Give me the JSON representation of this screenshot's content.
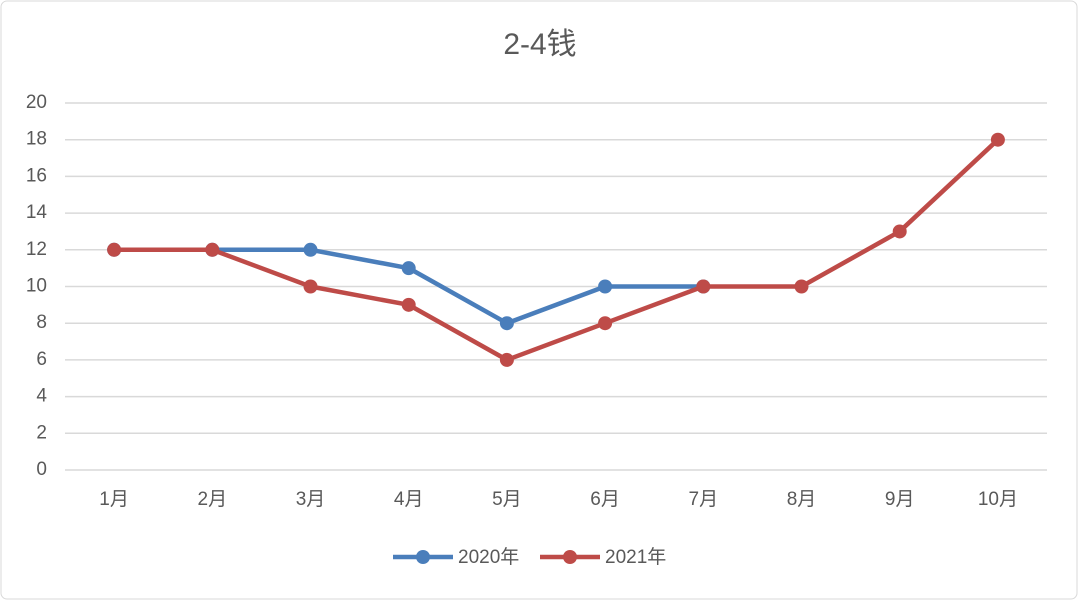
{
  "chart_data": {
    "type": "line",
    "title": "2-4钱",
    "categories": [
      "1月",
      "2月",
      "3月",
      "4月",
      "5月",
      "6月",
      "7月",
      "8月",
      "9月",
      "10月"
    ],
    "series": [
      {
        "name": "2020年",
        "color": "#4a7ebb",
        "values": [
          12,
          12,
          12,
          11,
          8,
          10,
          10,
          null,
          null,
          null
        ]
      },
      {
        "name": "2021年",
        "color": "#be4b48",
        "values": [
          12,
          12,
          10,
          9,
          6,
          8,
          10,
          10,
          13,
          18
        ]
      }
    ],
    "ylim": [
      0,
      20
    ],
    "yticks": [
      0,
      2,
      4,
      6,
      8,
      10,
      12,
      14,
      16,
      18,
      20
    ],
    "grid": true,
    "legend": "bottom"
  }
}
